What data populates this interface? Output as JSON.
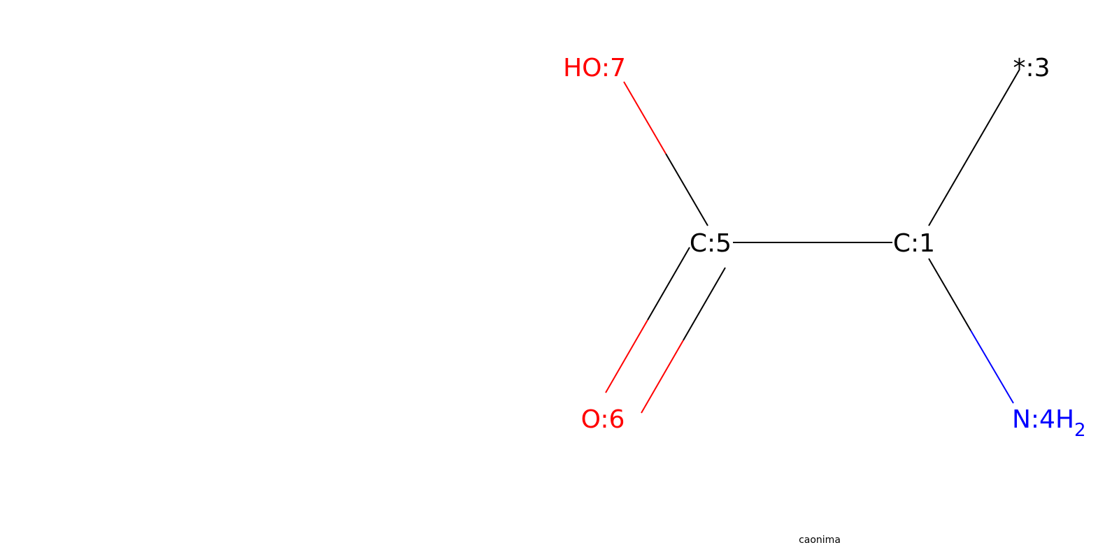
{
  "colors": {
    "carbon": "#000000",
    "oxygen": "#ff0000",
    "nitrogen": "#0000ff",
    "wildcard": "#000000"
  },
  "atoms": {
    "hydroxyl_label": "HO:7",
    "wildcard_label": "*:3",
    "carbon5_label": "C:5",
    "carbon1_label": "C:1",
    "carbonyl_oxygen_label": "O:6",
    "amine_label_main": "N:4H",
    "amine_label_subscript": "2"
  },
  "caption": "caonima",
  "bonds": [
    {
      "from": "C:5",
      "to": "HO:7",
      "order": 1,
      "colors": [
        "carbon",
        "oxygen"
      ]
    },
    {
      "from": "C:5",
      "to": "C:1",
      "order": 1,
      "colors": [
        "carbon",
        "carbon"
      ]
    },
    {
      "from": "C:1",
      "to": "*:3",
      "order": 1,
      "colors": [
        "carbon",
        "wildcard"
      ]
    },
    {
      "from": "C:5",
      "to": "O:6",
      "order": 2,
      "colors": [
        "carbon",
        "oxygen"
      ]
    },
    {
      "from": "C:1",
      "to": "N:4H2",
      "order": 1,
      "colors": [
        "carbon",
        "nitrogen"
      ]
    }
  ]
}
